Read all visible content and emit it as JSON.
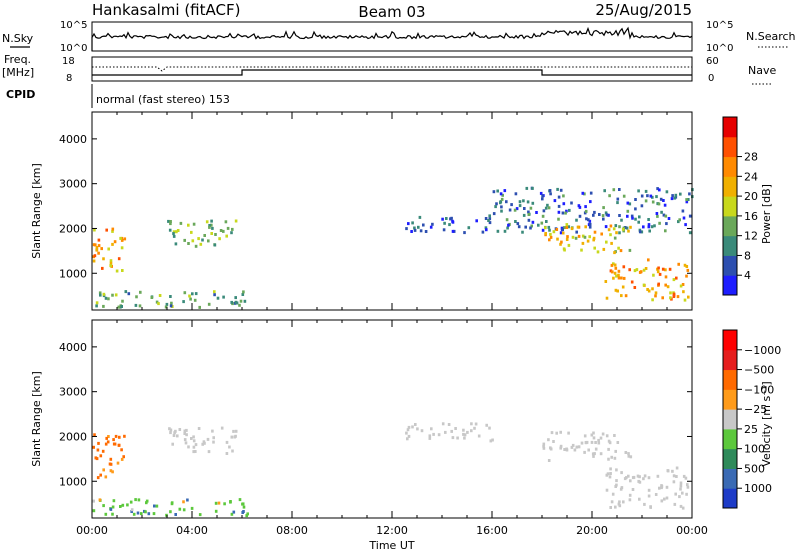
{
  "header": {
    "radar": "Hankasalmi (fitACF)",
    "beam": "Beam 03",
    "date": "25/Aug/2015"
  },
  "top_panels": {
    "nsky_label": "N.Sky",
    "nsky_ticks": [
      "10^5",
      "10^0"
    ],
    "nsearch_label": "N.Search",
    "nsearch_ticks": [
      "10^5",
      "10^0"
    ],
    "freq_label_1": "Freq.",
    "freq_label_2": "[MHz]",
    "freq_ticks": [
      "18",
      "8"
    ],
    "nave_label": "Nave",
    "nave_ticks": [
      "60",
      "0"
    ],
    "cpid_label": "CPID",
    "cpid_text": "normal (fast stereo) 153"
  },
  "chart_data": [
    {
      "type": "heatmap",
      "title": "Power",
      "ylabel": "Slant Range [km]",
      "ylim": [
        180,
        4600
      ],
      "yticks": [
        1000,
        2000,
        3000,
        4000
      ],
      "xlabel": "Time UT",
      "xlim_hours": [
        0,
        24
      ],
      "colorbar": {
        "label": "Power [dB]",
        "ticks": [
          "4",
          "8",
          "12",
          "16",
          "20",
          "24",
          "28"
        ],
        "colors": [
          "#1e1eff",
          "#2d4fb0",
          "#3a8a7a",
          "#6aa85a",
          "#c8d81c",
          "#f0b000",
          "#ff8a00",
          "#ff5000",
          "#e60000"
        ]
      },
      "echo_regions": [
        {
          "t": [
            0.0,
            1.3
          ],
          "r": [
            1050,
            2050
          ],
          "power_db": 24
        },
        {
          "t": [
            0.0,
            6.2
          ],
          "r": [
            230,
            600
          ],
          "power_db": 12
        },
        {
          "t": [
            3.0,
            5.8
          ],
          "r": [
            1600,
            2200
          ],
          "power_db": 14
        },
        {
          "t": [
            12.5,
            16.0
          ],
          "r": [
            1900,
            2300
          ],
          "power_db": 6
        },
        {
          "t": [
            16.0,
            24.0
          ],
          "r": [
            1900,
            2900
          ],
          "power_db": 8
        },
        {
          "t": [
            18.0,
            21.5
          ],
          "r": [
            1450,
            2100
          ],
          "power_db": 20
        },
        {
          "t": [
            20.5,
            23.8
          ],
          "r": [
            400,
            1300
          ],
          "power_db": 24
        }
      ]
    },
    {
      "type": "heatmap",
      "title": "Velocity",
      "ylabel": "Slant Range [km]",
      "ylim": [
        180,
        4600
      ],
      "yticks": [
        1000,
        2000,
        3000,
        4000
      ],
      "xlabel": "Time UT",
      "xticks": [
        "00:00",
        "04:00",
        "08:00",
        "12:00",
        "16:00",
        "20:00",
        "00:00"
      ],
      "colorbar": {
        "label": "Velocity [m s⁻¹]",
        "ticks": [
          "1000",
          "500",
          "100",
          "25",
          "−25",
          "−100",
          "−500",
          "−1000"
        ],
        "colors": [
          "#1e3cc8",
          "#3a6ab4",
          "#2e8a5a",
          "#5cc83c",
          "#c8c8c8",
          "#ff9b1a",
          "#ff6a00",
          "#e61e1e",
          "#ff0000"
        ]
      },
      "echo_regions": [
        {
          "t": [
            0.0,
            1.3
          ],
          "r": [
            1050,
            2050
          ],
          "velocity_ms": -200
        },
        {
          "t": [
            0.0,
            6.2
          ],
          "r": [
            230,
            600
          ],
          "velocity_ms": 80
        },
        {
          "t": [
            3.0,
            5.8
          ],
          "r": [
            1600,
            2200
          ],
          "velocity_ms": 0
        },
        {
          "t": [
            12.5,
            16.0
          ],
          "r": [
            1900,
            2300
          ],
          "velocity_ms": 0
        },
        {
          "t": [
            18.0,
            21.5
          ],
          "r": [
            1450,
            2100
          ],
          "velocity_ms": 0
        },
        {
          "t": [
            20.5,
            23.8
          ],
          "r": [
            400,
            1300
          ],
          "velocity_ms": 0
        }
      ]
    }
  ]
}
